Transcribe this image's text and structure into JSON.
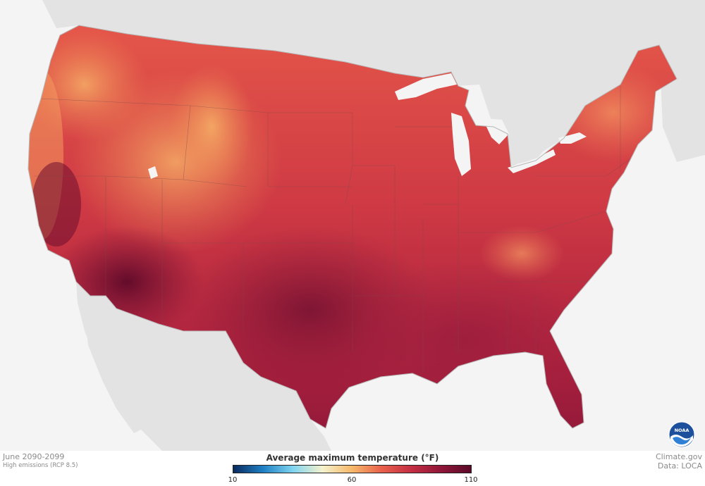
{
  "map": {
    "region": "Contiguous United States",
    "colors": {
      "background": "#f4f4f4",
      "neighbor_land": "#e3e3e3",
      "water": "#f4f4f4",
      "state_borders": "#7a4a4a",
      "hot": "#6e0f2e",
      "warm": "#c43040",
      "mild": "#e8604c"
    }
  },
  "footer": {
    "period": "June 2090-2099",
    "scenario": "High emissions (RCP 8.5)",
    "credit_site": "Climate.gov",
    "credit_data": "Data: LOCA"
  },
  "legend": {
    "title": "Average maximum temperature (°F)",
    "ticks": [
      "10",
      "60",
      "110"
    ],
    "range": [
      10,
      110
    ],
    "gradient": [
      "#0a2a5e",
      "#1e7fc4",
      "#7fd4f0",
      "#f5f2cc",
      "#f6b86a",
      "#e8604c",
      "#c42e43",
      "#8f1639",
      "#5a0a28"
    ]
  },
  "logo": {
    "text": "NOAA",
    "icon": "noaa-logo-icon"
  }
}
